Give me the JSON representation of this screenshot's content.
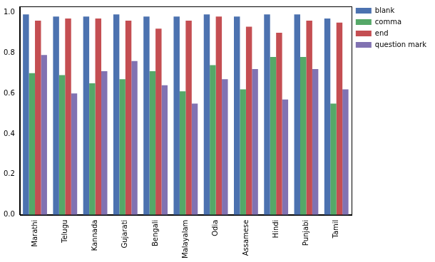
{
  "chart_data": {
    "type": "bar",
    "categories": [
      "Marathi",
      "Telugu",
      "Kannada",
      "Gujarati",
      "Bengali",
      "Malayalam",
      "Odia",
      "Assamese",
      "Hindi",
      "Punjabi",
      "Tamil"
    ],
    "series": [
      {
        "name": "blank",
        "color": "#4c72b0",
        "values": [
          0.99,
          0.98,
          0.98,
          0.99,
          0.98,
          0.98,
          0.99,
          0.98,
          0.99,
          0.99,
          0.97
        ]
      },
      {
        "name": "comma",
        "color": "#55a868",
        "values": [
          0.7,
          0.69,
          0.65,
          0.67,
          0.71,
          0.61,
          0.74,
          0.62,
          0.78,
          0.78,
          0.55
        ]
      },
      {
        "name": "end",
        "color": "#c44e52",
        "values": [
          0.96,
          0.97,
          0.97,
          0.96,
          0.92,
          0.96,
          0.98,
          0.93,
          0.9,
          0.96,
          0.95
        ]
      },
      {
        "name": "question mark",
        "color": "#8172b2",
        "values": [
          0.79,
          0.6,
          0.71,
          0.76,
          0.64,
          0.55,
          0.67,
          0.72,
          0.57,
          0.72,
          0.62
        ]
      }
    ],
    "ylim": [
      0,
      1.03
    ],
    "yticks": [
      {
        "value": 0,
        "label": "0.0"
      },
      {
        "value": 0.2,
        "label": "0.2"
      },
      {
        "value": 0.4,
        "label": "0.4"
      },
      {
        "value": 0.6,
        "label": "0.6"
      },
      {
        "value": 0.8,
        "label": "0.8"
      },
      {
        "value": 1,
        "label": "1.0"
      }
    ],
    "grid": false,
    "legend": "right"
  }
}
